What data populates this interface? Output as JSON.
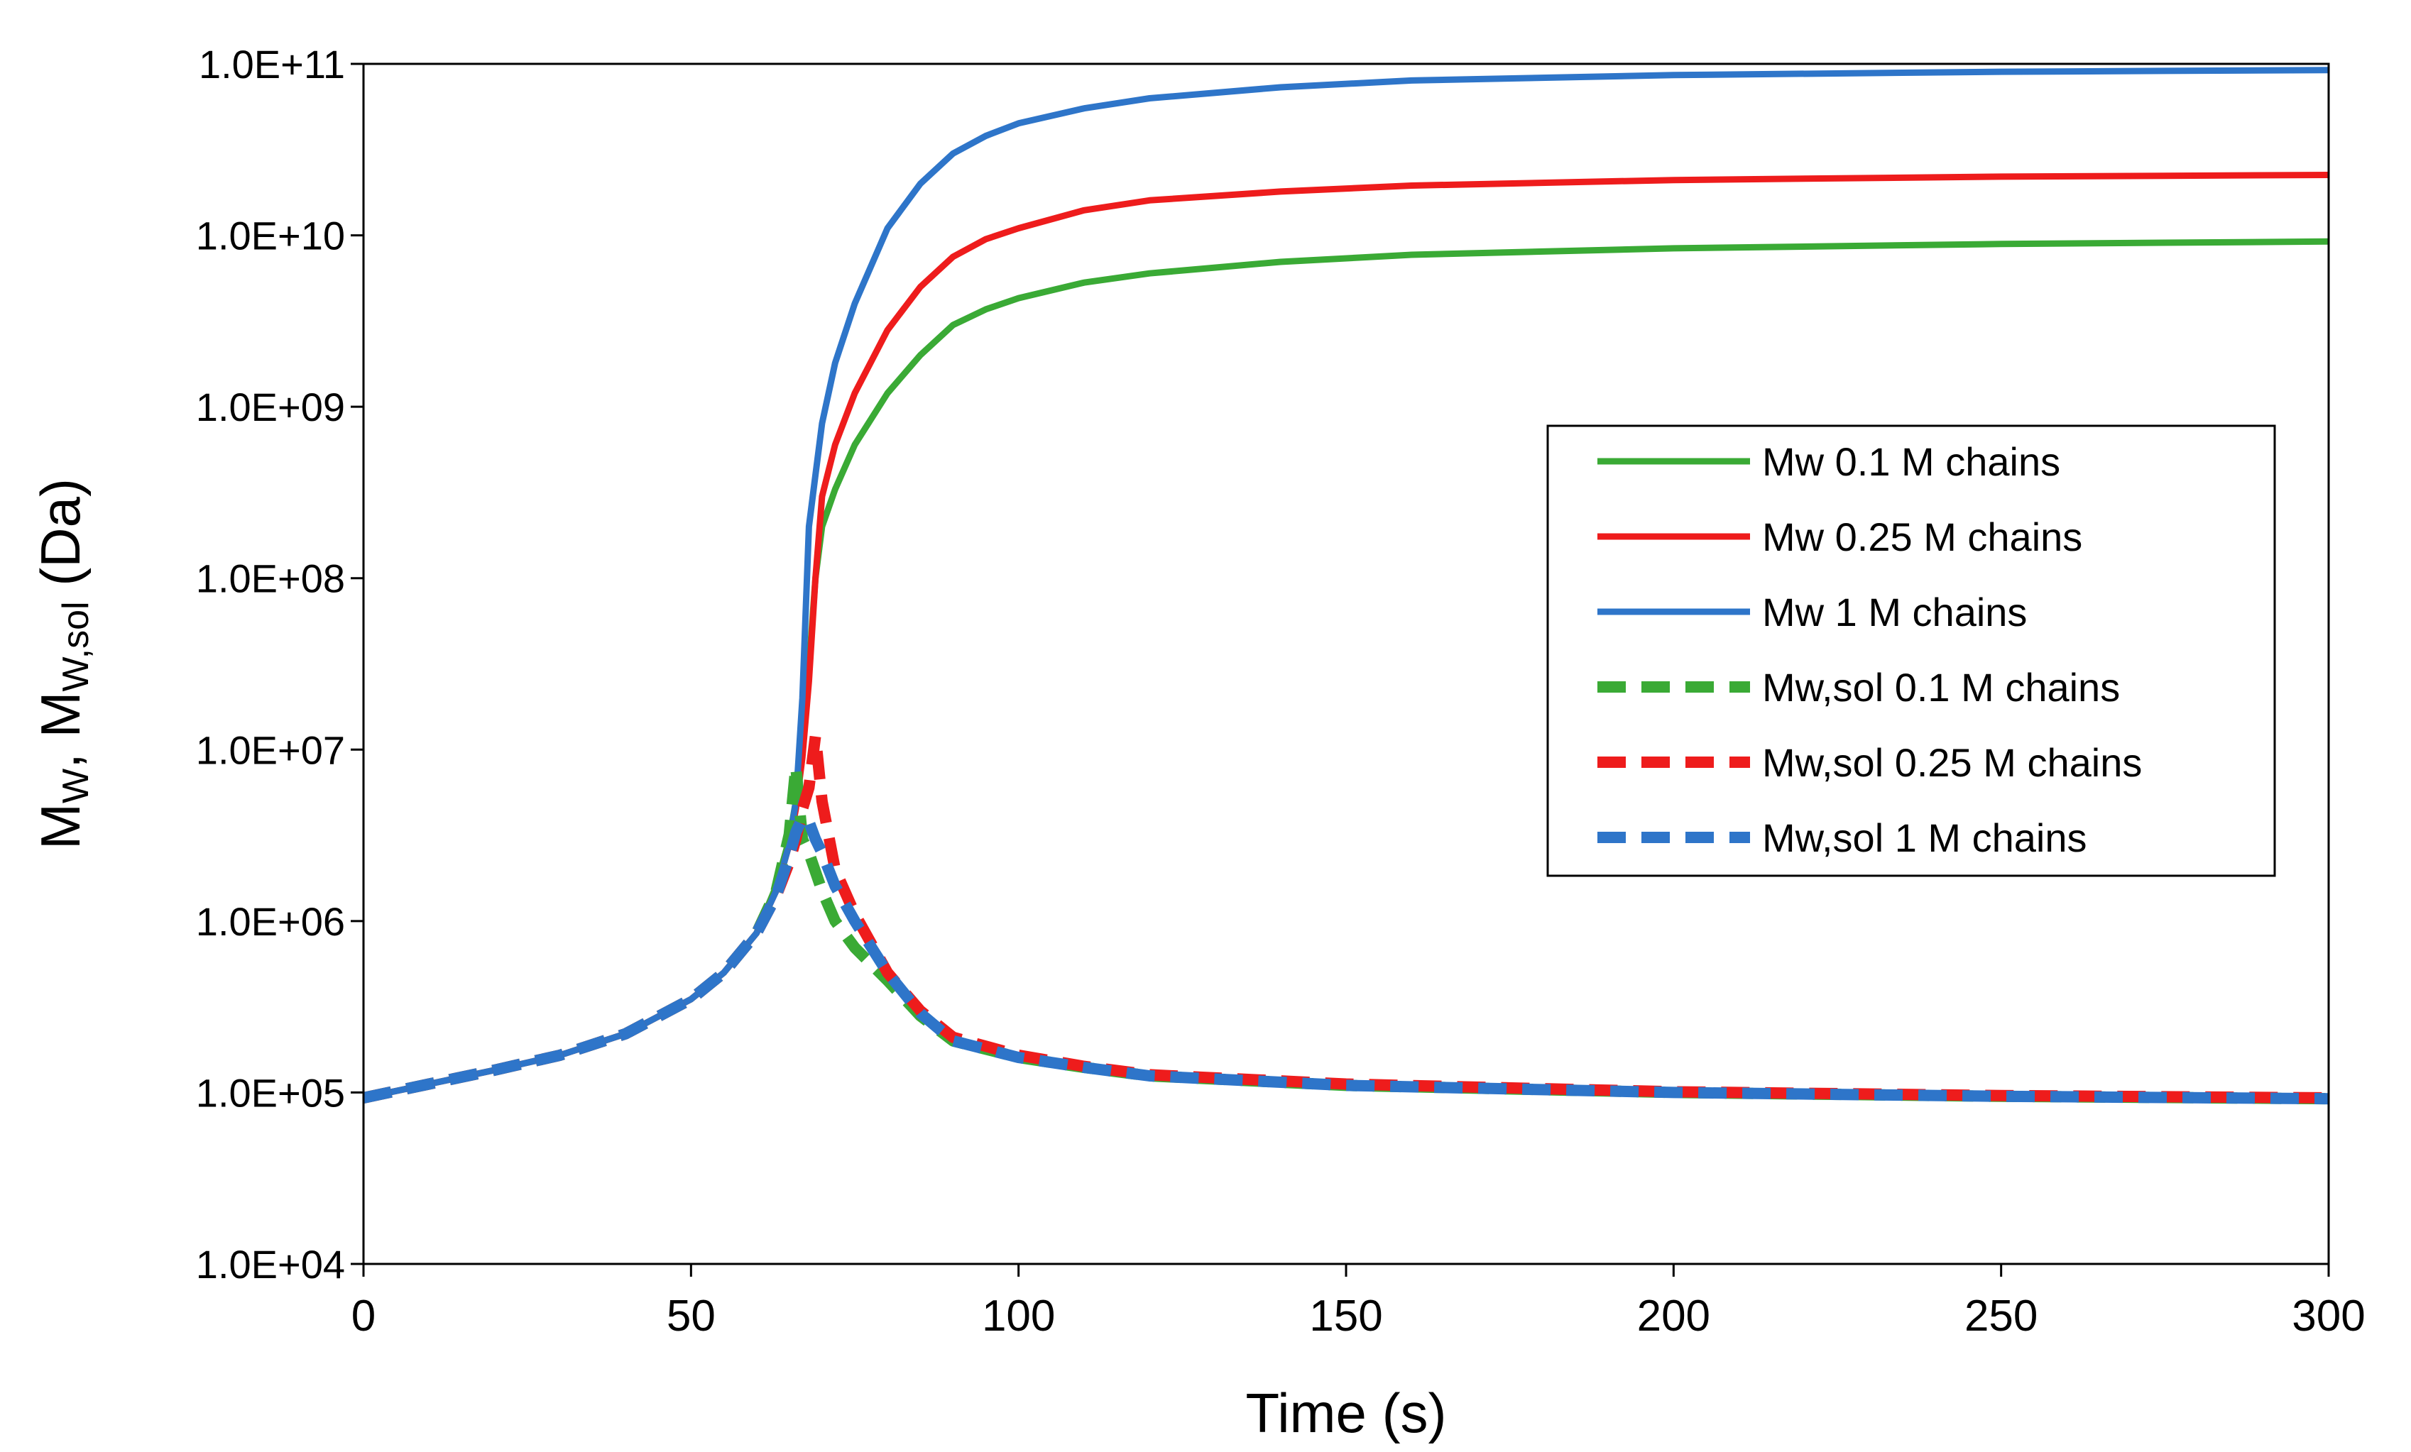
{
  "chart_data": {
    "type": "line",
    "title": "",
    "xlabel": "Time (s)",
    "ylabel": {
      "m1": "M",
      "s1": "W",
      "sep": ", ",
      "m2": "M",
      "s2": "W,sol",
      "units": " (Da)"
    },
    "xlim": [
      0,
      300
    ],
    "ylim": [
      10000,
      100000000000
    ],
    "yscale": "log",
    "x_ticks": [
      "0",
      "50",
      "100",
      "150",
      "200",
      "250",
      "300"
    ],
    "y_ticks": [
      "1.0E+04",
      "1.0E+05",
      "1.0E+06",
      "1.0E+07",
      "1.0E+08",
      "1.0E+09",
      "1.0E+10",
      "1.0E+11"
    ],
    "grid": false,
    "legend_position": "center-right",
    "series": [
      {
        "name": "Mw 0.1 M chains",
        "color": "#3aaa35",
        "style": "solid",
        "x": [
          0,
          10,
          20,
          30,
          40,
          50,
          55,
          60,
          63,
          65,
          66,
          67,
          68,
          69,
          70,
          72,
          75,
          80,
          85,
          90,
          95,
          100,
          110,
          120,
          140,
          160,
          200,
          250,
          300
        ],
        "y": [
          93000,
          112000,
          135000,
          165000,
          220000,
          350000,
          500000,
          850000,
          1600000,
          3000000,
          5000000,
          10000000,
          30000000,
          100000000,
          200000000,
          330000000,
          600000000,
          1200000000,
          2000000000,
          3000000000,
          3700000000,
          4300000000,
          5300000000,
          6000000000,
          7000000000,
          7700000000,
          8400000000,
          8900000000,
          9200000000
        ]
      },
      {
        "name": "Mw 0.25 M chains",
        "color": "#ee1c1c",
        "style": "solid",
        "x": [
          0,
          10,
          20,
          30,
          40,
          50,
          55,
          60,
          63,
          65,
          66,
          67,
          68,
          69,
          70,
          72,
          75,
          80,
          85,
          90,
          95,
          100,
          110,
          120,
          140,
          160,
          200,
          250,
          300
        ],
        "y": [
          93000,
          112000,
          135000,
          165000,
          220000,
          350000,
          500000,
          850000,
          1500000,
          2800000,
          4500000,
          9000000,
          25000000,
          100000000,
          300000000,
          600000000,
          1200000000,
          2800000000,
          5000000000,
          7500000000,
          9500000000,
          11000000000,
          14000000000,
          16000000000,
          18000000000,
          19500000000,
          21000000000,
          22000000000,
          22500000000
        ]
      },
      {
        "name": "Mw 1 M chains",
        "color": "#2e75c9",
        "style": "solid",
        "x": [
          0,
          10,
          20,
          30,
          40,
          50,
          55,
          60,
          63,
          65,
          66,
          67,
          68,
          69,
          70,
          72,
          75,
          80,
          85,
          90,
          95,
          100,
          110,
          120,
          140,
          160,
          200,
          250,
          300
        ],
        "y": [
          93000,
          112000,
          135000,
          165000,
          220000,
          350000,
          500000,
          850000,
          1500000,
          2800000,
          5000000,
          20000000,
          200000000,
          400000000,
          800000000,
          1800000000,
          4000000000,
          11000000000,
          20000000000,
          30000000000,
          38000000000,
          45000000000,
          55000000000,
          63000000000,
          73000000000,
          80000000000,
          86000000000,
          90000000000,
          92000000000
        ]
      },
      {
        "name": "Mw,sol 0.1 M chains",
        "color": "#3aaa35",
        "style": "dashed",
        "x": [
          0,
          10,
          20,
          30,
          40,
          50,
          55,
          60,
          63,
          65,
          66,
          67,
          68,
          70,
          72,
          75,
          80,
          85,
          90,
          100,
          110,
          120,
          150,
          200,
          250,
          300
        ],
        "y": [
          93000,
          112000,
          135000,
          165000,
          220000,
          350000,
          500000,
          850000,
          1500000,
          3200000,
          8000000,
          3000000,
          2500000,
          1500000,
          1000000,
          700000,
          450000,
          280000,
          200000,
          160000,
          140000,
          125000,
          110000,
          100000,
          95000,
          92000
        ]
      },
      {
        "name": "Mw,sol 0.25 M chains",
        "color": "#ee1c1c",
        "style": "dashed",
        "x": [
          0,
          10,
          20,
          30,
          40,
          50,
          55,
          60,
          63,
          65,
          66,
          67,
          68,
          69,
          70,
          72,
          75,
          80,
          85,
          90,
          100,
          110,
          120,
          150,
          200,
          250,
          300
        ],
        "y": [
          93000,
          112000,
          135000,
          165000,
          220000,
          350000,
          500000,
          850000,
          1400000,
          2200000,
          3000000,
          4500000,
          6000000,
          12000000,
          5000000,
          2000000,
          1100000,
          500000,
          300000,
          210000,
          165000,
          142000,
          127000,
          112000,
          101000,
          96000,
          93000
        ]
      },
      {
        "name": "Mw,sol 1 M chains",
        "color": "#2e75c9",
        "style": "dashed",
        "x": [
          0,
          10,
          20,
          30,
          40,
          50,
          55,
          60,
          63,
          65,
          66,
          67,
          68,
          69,
          70,
          72,
          75,
          80,
          85,
          90,
          100,
          110,
          120,
          150,
          200,
          250,
          300
        ],
        "y": [
          93000,
          112000,
          135000,
          165000,
          220000,
          350000,
          500000,
          850000,
          1400000,
          2400000,
          3300000,
          4000000,
          3800000,
          3000000,
          2500000,
          1600000,
          1000000,
          500000,
          290000,
          200000,
          160000,
          140000,
          125000,
          110000,
          100000,
          95000,
          92000
        ]
      }
    ]
  }
}
